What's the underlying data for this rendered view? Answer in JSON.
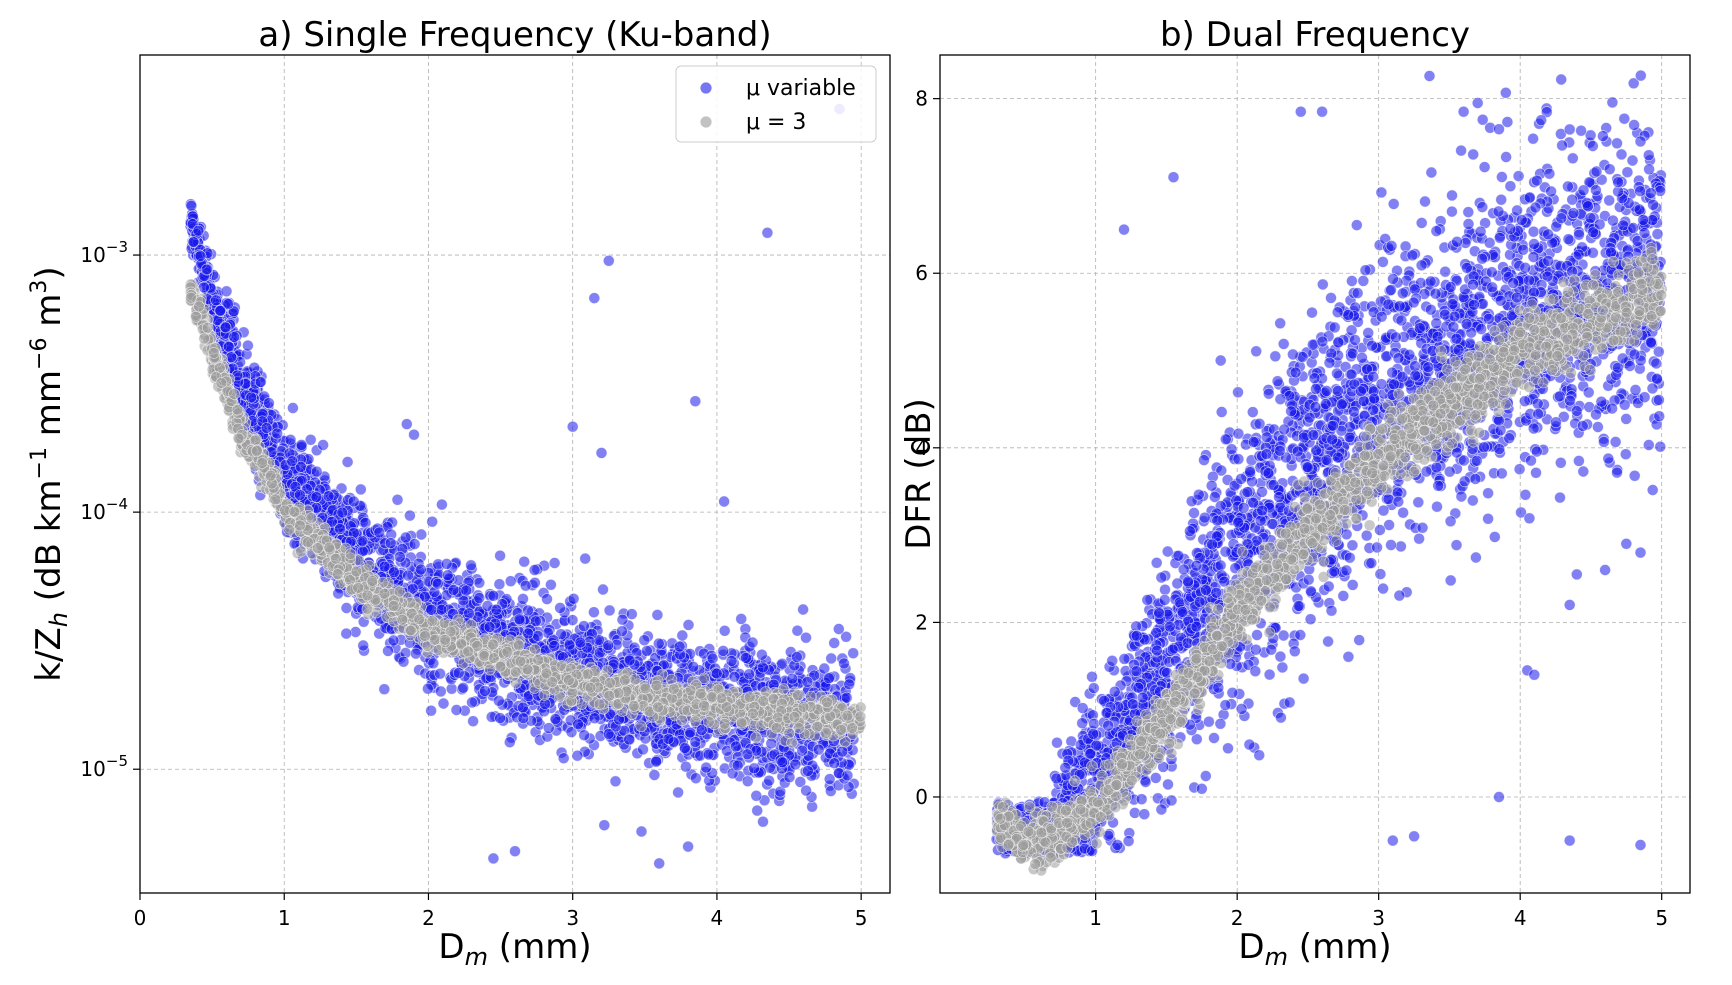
{
  "chart_data": [
    {
      "id": "a",
      "type": "scatter",
      "title": "a) Single Frequency (Ku-band)",
      "xlabel": "D",
      "xlabel_sub": "m",
      "xlabel_unit": " (mm)",
      "ylabel": "k/Z",
      "ylabel_sub": "h",
      "ylabel_unit_a": " (dB km",
      "ylabel_sup1": "−1",
      "ylabel_unit_b": " mm",
      "ylabel_sup2": "−6",
      "ylabel_unit_c": " m",
      "ylabel_sup3": "3",
      "ylabel_unit_d": ")",
      "xlim": [
        0,
        5.2
      ],
      "ylim": [
        3.3e-06,
        0.006
      ],
      "yscale": "log",
      "grid": true,
      "legend_position": "top-right",
      "xticks": [
        0,
        1,
        2,
        3,
        4,
        5
      ],
      "xtick_labels": [
        "0",
        "1",
        "2",
        "3",
        "4",
        "5"
      ],
      "yticks": [
        {
          "value": 0.001,
          "base": "10",
          "exp": "−3"
        },
        {
          "value": 0.0001,
          "base": "10",
          "exp": "−4"
        },
        {
          "value": 1e-05,
          "base": "10",
          "exp": "−5"
        }
      ],
      "series": [
        {
          "name": "μ variable",
          "color": "#1a1aeb",
          "trend": {
            "x": [
              0.35,
              0.5,
              0.7,
              1.0,
              1.5,
              2.0,
              2.5,
              3.0,
              3.5,
              4.0,
              4.5,
              5.0
            ],
            "y": [
              0.0013,
              0.00065,
              0.0003,
              0.00013,
              6.5e-05,
              4e-05,
              2.9e-05,
              2.3e-05,
              1.9e-05,
              1.7e-05,
              1.6e-05,
              1.5e-05
            ]
          },
          "outliers": [
            {
              "x": 4.35,
              "y": 0.00122
            },
            {
              "x": 3.25,
              "y": 0.00095
            },
            {
              "x": 3.15,
              "y": 0.00068
            },
            {
              "x": 3.85,
              "y": 0.00027
            },
            {
              "x": 3.0,
              "y": 0.000215
            },
            {
              "x": 1.85,
              "y": 0.00022
            },
            {
              "x": 1.9,
              "y": 0.0002
            },
            {
              "x": 3.2,
              "y": 0.00017
            },
            {
              "x": 4.05,
              "y": 0.00011
            },
            {
              "x": 2.45,
              "y": 4.5e-06
            },
            {
              "x": 3.6,
              "y": 4.3e-06
            },
            {
              "x": 2.6,
              "y": 4.8e-06
            },
            {
              "x": 3.8,
              "y": 5e-06
            },
            {
              "x": 4.85,
              "y": 0.0037
            }
          ]
        },
        {
          "name": "μ = 3",
          "color": "#9a9a9a",
          "trend": {
            "x": [
              0.35,
              0.5,
              0.7,
              1.0,
              1.5,
              2.0,
              2.5,
              3.0,
              3.5,
              4.0,
              4.5,
              5.0
            ],
            "y": [
              0.00072,
              0.0004,
              0.0002,
              0.0001,
              5.3e-05,
              3.5e-05,
              2.7e-05,
              2.2e-05,
              1.9e-05,
              1.75e-05,
              1.65e-05,
              1.55e-05
            ]
          }
        }
      ]
    },
    {
      "id": "b",
      "type": "scatter",
      "title": "b) Dual Frequency",
      "xlabel": "D",
      "xlabel_sub": "m",
      "xlabel_unit": " (mm)",
      "ylabel": "DFR (dB)",
      "xlim": [
        -0.1,
        5.2
      ],
      "ylim": [
        -1.1,
        8.5
      ],
      "grid": true,
      "xticks": [
        1,
        2,
        3,
        4,
        5
      ],
      "xtick_labels": [
        "1",
        "2",
        "3",
        "4",
        "5"
      ],
      "yticks": [
        0,
        2,
        4,
        6,
        8
      ],
      "ytick_labels": [
        "0",
        "2",
        "4",
        "6",
        "8"
      ],
      "series": [
        {
          "name": "μ variable",
          "color": "#1a1aeb",
          "trend": {
            "x": [
              0.3,
              0.5,
              0.7,
              1.0,
              1.5,
              2.0,
              2.5,
              3.0,
              3.5,
              4.0,
              4.5,
              5.0
            ],
            "y": [
              -0.3,
              -0.45,
              -0.35,
              0.2,
              1.5,
              2.8,
              3.8,
              4.5,
              5.0,
              5.5,
              5.8,
              6.0
            ]
          },
          "outliers": [
            {
              "x": 2.45,
              "y": 7.85
            },
            {
              "x": 2.6,
              "y": 7.85
            },
            {
              "x": 3.6,
              "y": 7.85
            },
            {
              "x": 3.7,
              "y": 7.95
            },
            {
              "x": 3.85,
              "y": 7.65
            },
            {
              "x": 1.55,
              "y": 7.1
            },
            {
              "x": 1.2,
              "y": 6.5
            },
            {
              "x": 3.85,
              "y": 0.0
            },
            {
              "x": 4.35,
              "y": -0.5
            },
            {
              "x": 4.85,
              "y": -0.55
            },
            {
              "x": 3.25,
              "y": -0.45
            },
            {
              "x": 3.1,
              "y": -0.5
            },
            {
              "x": 4.05,
              "y": 1.45
            },
            {
              "x": 4.1,
              "y": 1.4
            },
            {
              "x": 4.4,
              "y": 2.55
            },
            {
              "x": 4.75,
              "y": 2.9
            },
            {
              "x": 4.85,
              "y": 2.8
            },
            {
              "x": 4.6,
              "y": 2.6
            },
            {
              "x": 4.35,
              "y": 2.2
            }
          ]
        },
        {
          "name": "μ = 3",
          "color": "#9a9a9a",
          "trend": {
            "x": [
              0.3,
              0.5,
              0.7,
              1.0,
              1.5,
              2.0,
              2.5,
              3.0,
              3.5,
              4.0,
              4.5,
              5.0
            ],
            "y": [
              -0.3,
              -0.5,
              -0.45,
              -0.1,
              0.9,
              2.1,
              3.0,
              3.9,
              4.5,
              5.1,
              5.5,
              5.8
            ]
          }
        }
      ]
    }
  ],
  "legend": {
    "items": [
      {
        "label": "μ variable",
        "color": "#1a1aeb"
      },
      {
        "label": "μ = 3",
        "color": "#9a9a9a"
      }
    ]
  }
}
